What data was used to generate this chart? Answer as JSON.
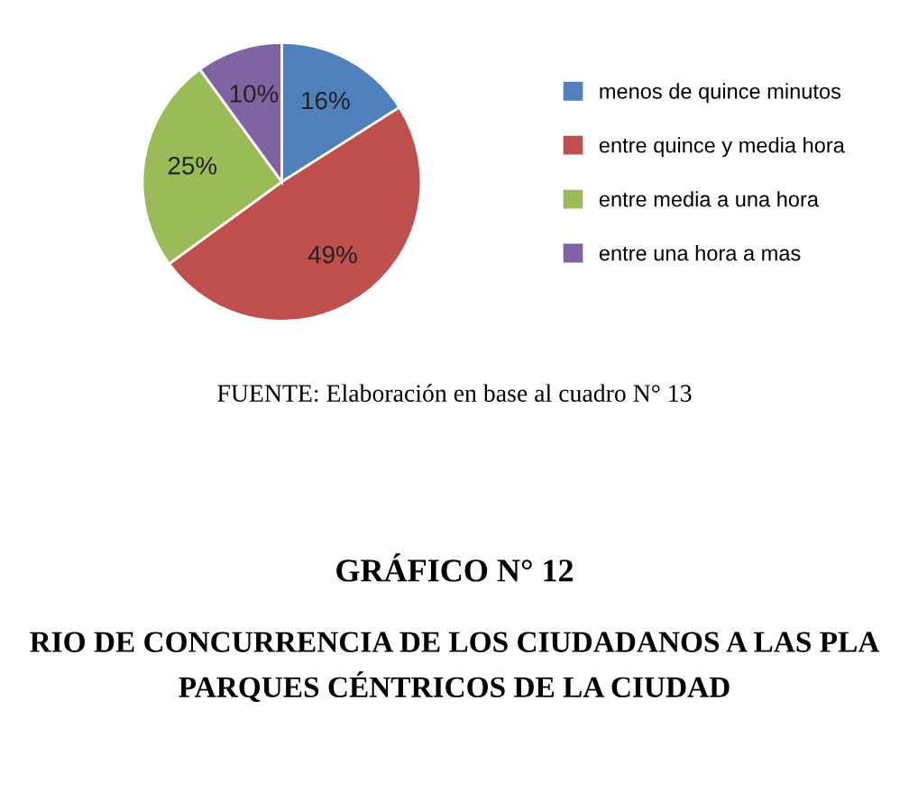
{
  "chart_data": {
    "type": "pie",
    "categories": [
      "menos de quince minutos",
      "entre quince y media hora",
      "entre media a una hora",
      "entre una hora a mas"
    ],
    "values": [
      16,
      49,
      25,
      10
    ],
    "value_labels": [
      "16%",
      "49%",
      "25%",
      "10%"
    ],
    "colors": [
      "#4f81bd",
      "#c0504d",
      "#9bbb59",
      "#8064a2"
    ],
    "legend": "right",
    "annotations": [
      "FUENTE: Elaboración en base al cuadro N° 13",
      "GRÁFICO N° 12",
      "RIO DE CONCURRENCIA DE LOS CIUDADANOS A LAS PLA",
      "PARQUES CÉNTRICOS DE LA CIUDAD"
    ]
  }
}
